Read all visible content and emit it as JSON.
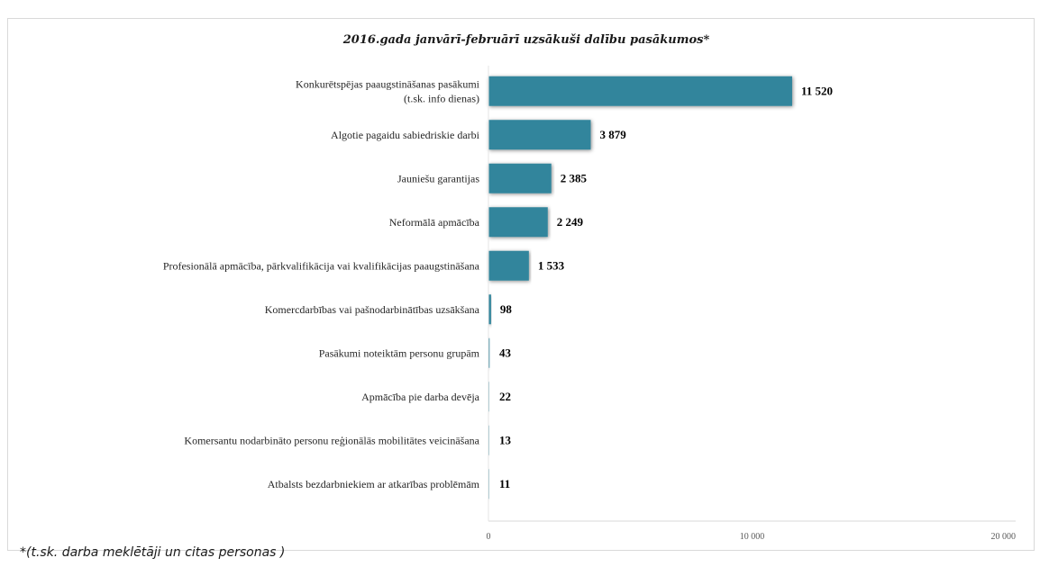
{
  "chart_data": {
    "type": "bar",
    "orientation": "horizontal",
    "title": "2016.gada janvārī-februārī uzsākuši dalību pasākumos*",
    "categories": [
      "Konkurētspējas paaugstināšanas pasākumi\n(t.sk. info dienas)",
      "Algotie pagaidu sabiedriskie darbi",
      "Jauniešu garantijas",
      "Neformālā apmācība",
      "Profesionālā apmācība, pārkvalifikācija vai kvalifikācijas paaugstināšana",
      "Komercdarbības vai pašnodarbinātības uzsākšana",
      "Pasākumi noteiktām personu grupām",
      "Apmācība pie darba devēja",
      "Komersantu nodarbināto personu reģionālās mobilitātes veicināšana",
      "Atbalsts bezdarbniekiem ar atkarības problēmām"
    ],
    "values": [
      11520,
      3879,
      2385,
      2249,
      1533,
      98,
      43,
      22,
      13,
      11
    ],
    "value_labels": [
      "11 520",
      "3 879",
      "2 385",
      "2 249",
      "1 533",
      "98",
      "43",
      "22",
      "13",
      "11"
    ],
    "xlim": [
      0,
      20000
    ],
    "x_ticks": [
      0,
      10000,
      20000
    ],
    "x_tick_labels": [
      "0",
      "10 000",
      "20 000"
    ],
    "bar_color": "#31859c",
    "grid": false,
    "legend": "none"
  },
  "footnote": "*(t.sk. darba meklētāji un citas personas )"
}
